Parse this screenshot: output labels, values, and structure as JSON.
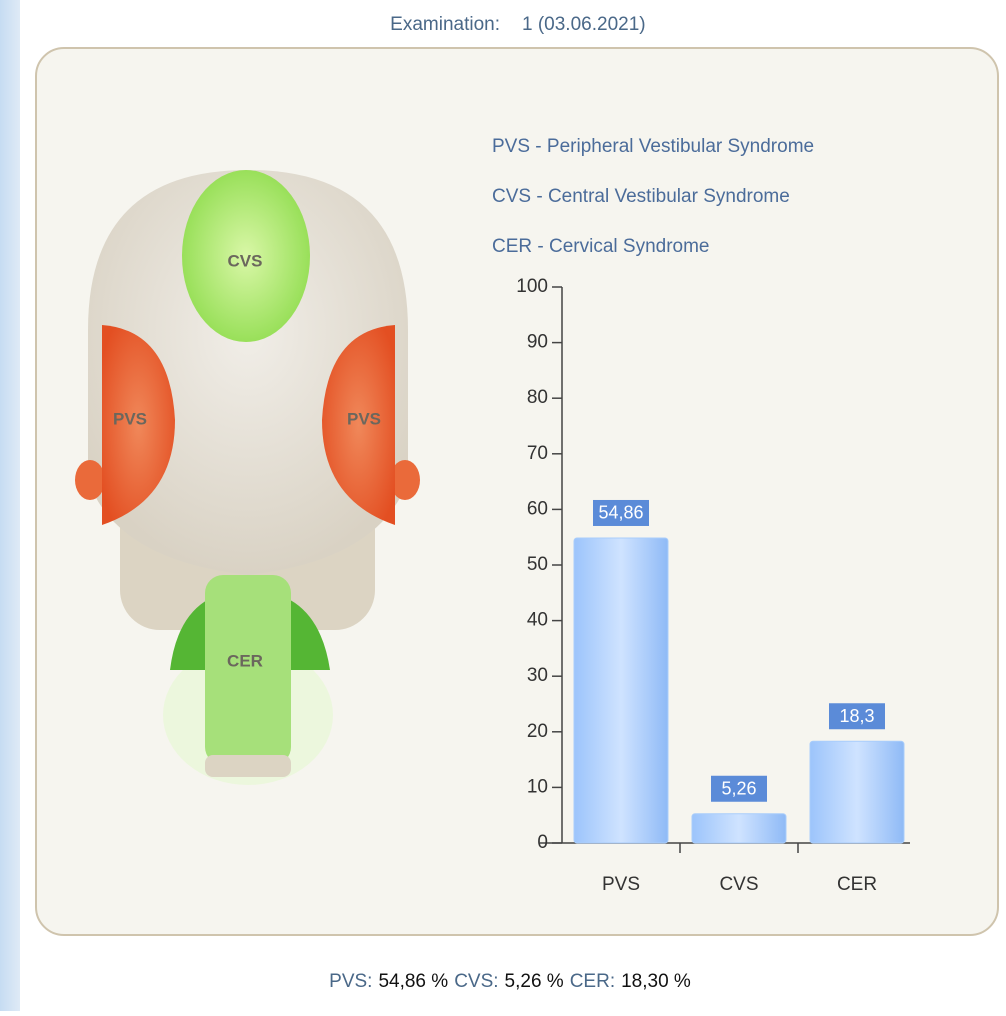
{
  "header": {
    "label": "Examination:",
    "value": "1 (03.06.2021)"
  },
  "legend": [
    "PVS - Peripheral Vestibular Syndrome",
    "CVS - Central Vestibular Syndrome",
    "CER - Cervical Syndrome"
  ],
  "head_labels": {
    "top": "CVS",
    "left": "PVS",
    "right": "PVS",
    "neck": "CER"
  },
  "chart_data": {
    "type": "bar",
    "categories": [
      "PVS",
      "CVS",
      "CER"
    ],
    "values": [
      54.86,
      5.26,
      18.3
    ],
    "value_labels": [
      "54,86",
      "5,26",
      "18,3"
    ],
    "color": "#a9cdfb",
    "label_color": "#5b8bd8",
    "ylim": [
      0,
      100
    ],
    "yticks": [
      0,
      10,
      20,
      30,
      40,
      50,
      60,
      70,
      80,
      90,
      100
    ]
  },
  "footer": [
    {
      "name": "PVS:",
      "value": "54,86 %"
    },
    {
      "name": "CVS:",
      "value": "5,26 %"
    },
    {
      "name": "CER:",
      "value": "18,30 %"
    }
  ]
}
